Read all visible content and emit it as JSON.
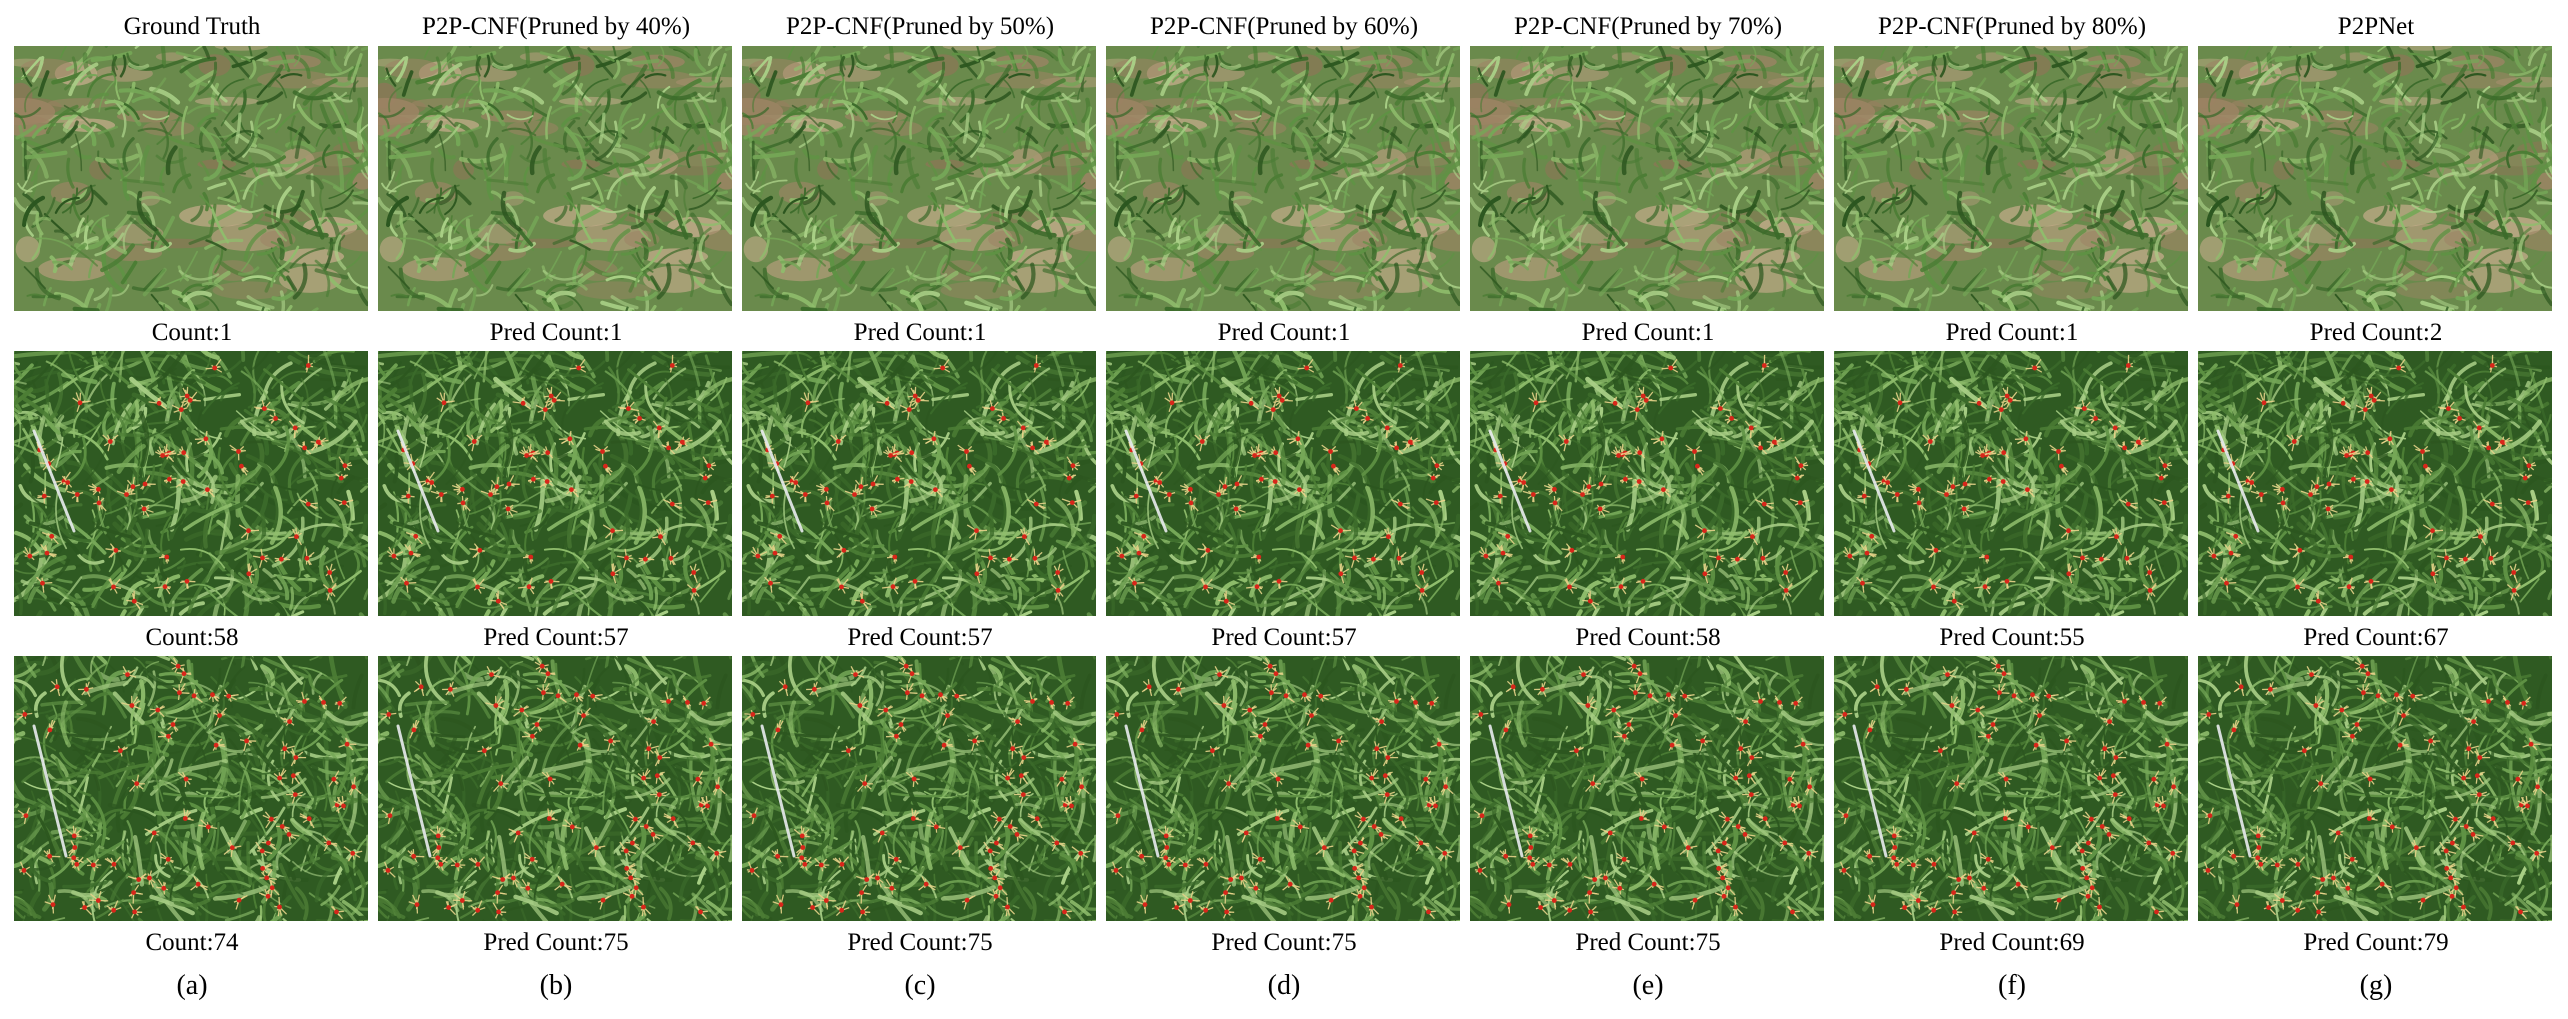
{
  "figure": {
    "panels": [
      {
        "header": "Ground Truth",
        "counts": [
          "Count:1",
          "Count:58",
          "Count:74"
        ],
        "tag": "(a)"
      },
      {
        "header": "P2P-CNF(Pruned by 40%)",
        "counts": [
          "Pred Count:1",
          "Pred Count:57",
          "Pred Count:75"
        ],
        "tag": "(b)"
      },
      {
        "header": "P2P-CNF(Pruned by 50%)",
        "counts": [
          "Pred Count:1",
          "Pred Count:57",
          "Pred Count:75"
        ],
        "tag": "(c)"
      },
      {
        "header": "P2P-CNF(Pruned by 60%)",
        "counts": [
          "Pred Count:1",
          "Pred Count:57",
          "Pred Count:75"
        ],
        "tag": "(d)"
      },
      {
        "header": "P2P-CNF(Pruned by 70%)",
        "counts": [
          "Pred Count:1",
          "Pred Count:58",
          "Pred Count:75"
        ],
        "tag": "(e)"
      },
      {
        "header": "P2P-CNF(Pruned by 80%)",
        "counts": [
          "Pred Count:1",
          "Pred Count:55",
          "Pred Count:69"
        ],
        "tag": "(f)"
      },
      {
        "header": "P2PNet",
        "counts": [
          "Pred Count:2",
          "Pred Count:67",
          "Pred Count:79"
        ],
        "tag": "(g)"
      }
    ],
    "colors": {
      "foliage_dark": "#2f5a22",
      "foliage_light": "#7ea85a",
      "soil": "#a88f6e",
      "tassel": "#e8d48a",
      "marker": "#d8261a",
      "ruler": "#e9ecef"
    }
  }
}
